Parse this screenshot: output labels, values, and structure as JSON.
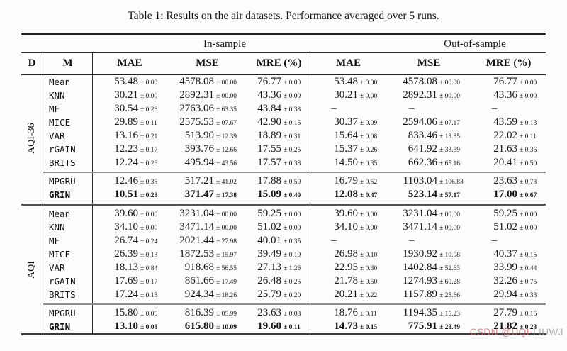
{
  "title": "Table 1: Results on the air datasets. Performance averaged over 5 runs.",
  "watermark": {
    "prefix": "CSDN @UQI-",
    "suffix": "LIUWJ"
  },
  "table": {
    "sample_headers": {
      "in": "In-sample",
      "out": "Out-of-sample"
    },
    "col_headers": {
      "dataset": "D",
      "method": "M",
      "mae": "MAE",
      "mse": "MSE",
      "mre": "MRE (%)"
    },
    "groups": [
      {
        "dataset": "AQI-36",
        "baseline_rows": [
          {
            "method": "Mean",
            "bold": false,
            "cells": [
              {
                "v": "53.48",
                "s": "± 0.00"
              },
              {
                "v": "4578.08",
                "s": "± 00.00"
              },
              {
                "v": "76.77",
                "s": "± 0.00"
              },
              {
                "v": "53.48",
                "s": "± 0.00"
              },
              {
                "v": "4578.08",
                "s": "± 00.00"
              },
              {
                "v": "76.77",
                "s": "± 0.00"
              }
            ]
          },
          {
            "method": "KNN",
            "bold": false,
            "cells": [
              {
                "v": "30.21",
                "s": "± 0.00"
              },
              {
                "v": "2892.31",
                "s": "± 00.00"
              },
              {
                "v": "43.36",
                "s": "± 0.00"
              },
              {
                "v": "30.21",
                "s": "± 0.00"
              },
              {
                "v": "2892.31",
                "s": "± 00.00"
              },
              {
                "v": "43.36",
                "s": "± 0.00"
              }
            ]
          },
          {
            "method": "MF",
            "bold": false,
            "cells": [
              {
                "v": "30.54",
                "s": "± 0.26"
              },
              {
                "v": "2763.06",
                "s": "± 63.35"
              },
              {
                "v": "43.84",
                "s": "± 0.38"
              },
              {
                "v": "–",
                "s": ""
              },
              {
                "v": "–",
                "s": ""
              },
              {
                "v": "–",
                "s": ""
              }
            ]
          },
          {
            "method": "MICE",
            "bold": false,
            "cells": [
              {
                "v": "29.89",
                "s": "± 0.11"
              },
              {
                "v": "2575.53",
                "s": "± 07.67"
              },
              {
                "v": "42.90",
                "s": "± 0.15"
              },
              {
                "v": "30.37",
                "s": "± 0.09"
              },
              {
                "v": "2594.06",
                "s": "± 07.17"
              },
              {
                "v": "43.59",
                "s": "± 0.13"
              }
            ]
          },
          {
            "method": "VAR",
            "bold": false,
            "cells": [
              {
                "v": "13.16",
                "s": "± 0.21"
              },
              {
                "v": "513.90",
                "s": "± 12.39"
              },
              {
                "v": "18.89",
                "s": "± 0.31"
              },
              {
                "v": "15.64",
                "s": "± 0.08"
              },
              {
                "v": "833.46",
                "s": "± 13.85"
              },
              {
                "v": "22.02",
                "s": "± 0.11"
              }
            ]
          },
          {
            "method": "rGAIN",
            "bold": false,
            "cells": [
              {
                "v": "12.23",
                "s": "± 0.17"
              },
              {
                "v": "393.76",
                "s": "± 12.66"
              },
              {
                "v": "17.55",
                "s": "± 0.25"
              },
              {
                "v": "15.37",
                "s": "± 0.26"
              },
              {
                "v": "641.92",
                "s": "± 33.89"
              },
              {
                "v": "21.63",
                "s": "± 0.36"
              }
            ]
          },
          {
            "method": "BRITS",
            "bold": false,
            "cells": [
              {
                "v": "12.24",
                "s": "± 0.26"
              },
              {
                "v": "495.94",
                "s": "± 43.56"
              },
              {
                "v": "17.57",
                "s": "± 0.38"
              },
              {
                "v": "14.50",
                "s": "± 0.35"
              },
              {
                "v": "662.36",
                "s": "± 65.16"
              },
              {
                "v": "20.41",
                "s": "± 0.50"
              }
            ]
          }
        ],
        "model_rows": [
          {
            "method": "MPGRU",
            "bold": false,
            "cells": [
              {
                "v": "12.46",
                "s": "± 0.35"
              },
              {
                "v": "517.21",
                "s": "± 41.02"
              },
              {
                "v": "17.88",
                "s": "± 0.50"
              },
              {
                "v": "16.79",
                "s": "± 0.52"
              },
              {
                "v": "1103.04",
                "s": "± 106.83"
              },
              {
                "v": "23.63",
                "s": "± 0.73"
              }
            ]
          },
          {
            "method": "GRIN",
            "bold": true,
            "cells": [
              {
                "v": "10.51",
                "s": "± 0.28"
              },
              {
                "v": "371.47",
                "s": "± 17.38"
              },
              {
                "v": "15.09",
                "s": "± 0.40"
              },
              {
                "v": "12.08",
                "s": "± 0.47"
              },
              {
                "v": "523.14",
                "s": "± 57.17"
              },
              {
                "v": "17.00",
                "s": "± 0.67"
              }
            ]
          }
        ]
      },
      {
        "dataset": "AQI",
        "baseline_rows": [
          {
            "method": "Mean",
            "bold": false,
            "cells": [
              {
                "v": "39.60",
                "s": "± 0.00"
              },
              {
                "v": "3231.04",
                "s": "± 00.00"
              },
              {
                "v": "59.25",
                "s": "± 0.00"
              },
              {
                "v": "39.60",
                "s": "± 0.00"
              },
              {
                "v": "3231.04",
                "s": "± 00.00"
              },
              {
                "v": "59.25",
                "s": "± 0.00"
              }
            ]
          },
          {
            "method": "KNN",
            "bold": false,
            "cells": [
              {
                "v": "34.10",
                "s": "± 0.00"
              },
              {
                "v": "3471.14",
                "s": "± 00.00"
              },
              {
                "v": "51.02",
                "s": "± 0.00"
              },
              {
                "v": "34.10",
                "s": "± 0.00"
              },
              {
                "v": "3471.14",
                "s": "± 00.00"
              },
              {
                "v": "51.02",
                "s": "± 0.00"
              }
            ]
          },
          {
            "method": "MF",
            "bold": false,
            "cells": [
              {
                "v": "26.74",
                "s": "± 0.24"
              },
              {
                "v": "2021.44",
                "s": "± 27.98"
              },
              {
                "v": "40.01",
                "s": "± 0.35"
              },
              {
                "v": "–",
                "s": ""
              },
              {
                "v": "–",
                "s": ""
              },
              {
                "v": "–",
                "s": ""
              }
            ]
          },
          {
            "method": "MICE",
            "bold": false,
            "cells": [
              {
                "v": "26.39",
                "s": "± 0.13"
              },
              {
                "v": "1872.53",
                "s": "± 15.97"
              },
              {
                "v": "39.49",
                "s": "± 0.19"
              },
              {
                "v": "26.98",
                "s": "± 0.10"
              },
              {
                "v": "1930.92",
                "s": "± 10.08"
              },
              {
                "v": "40.37",
                "s": "± 0.15"
              }
            ]
          },
          {
            "method": "VAR",
            "bold": false,
            "cells": [
              {
                "v": "18.13",
                "s": "± 0.84"
              },
              {
                "v": "918.68",
                "s": "± 56.55"
              },
              {
                "v": "27.13",
                "s": "± 1.26"
              },
              {
                "v": "22.95",
                "s": "± 0.30"
              },
              {
                "v": "1402.84",
                "s": "± 52.63"
              },
              {
                "v": "33.99",
                "s": "± 0.44"
              }
            ]
          },
          {
            "method": "rGAIN",
            "bold": false,
            "cells": [
              {
                "v": "17.69",
                "s": "± 0.17"
              },
              {
                "v": "861.66",
                "s": "± 17.49"
              },
              {
                "v": "26.48",
                "s": "± 0.25"
              },
              {
                "v": "21.78",
                "s": "± 0.50"
              },
              {
                "v": "1274.93",
                "s": "± 60.28"
              },
              {
                "v": "32.26",
                "s": "± 0.75"
              }
            ]
          },
          {
            "method": "BRITS",
            "bold": false,
            "cells": [
              {
                "v": "17.24",
                "s": "± 0.13"
              },
              {
                "v": "924.34",
                "s": "± 18.26"
              },
              {
                "v": "25.79",
                "s": "± 0.20"
              },
              {
                "v": "20.21",
                "s": "± 0.22"
              },
              {
                "v": "1157.89",
                "s": "± 25.66"
              },
              {
                "v": "29.94",
                "s": "± 0.33"
              }
            ]
          }
        ],
        "model_rows": [
          {
            "method": "MPGRU",
            "bold": false,
            "cells": [
              {
                "v": "15.80",
                "s": "± 0.05"
              },
              {
                "v": "816.39",
                "s": "± 05.99"
              },
              {
                "v": "23.63",
                "s": "± 0.08"
              },
              {
                "v": "18.76",
                "s": "± 0.11"
              },
              {
                "v": "1194.35",
                "s": "± 15.23"
              },
              {
                "v": "27.79",
                "s": "± 0.16"
              }
            ]
          },
          {
            "method": "GRIN",
            "bold": true,
            "cells": [
              {
                "v": "13.10",
                "s": "± 0.08"
              },
              {
                "v": "615.80",
                "s": "± 10.09"
              },
              {
                "v": "19.60",
                "s": "± 0.11"
              },
              {
                "v": "14.73",
                "s": "± 0.15"
              },
              {
                "v": "775.91",
                "s": "± 28.49"
              },
              {
                "v": "21.82",
                "s": "± 0.23"
              }
            ]
          }
        ]
      }
    ]
  }
}
